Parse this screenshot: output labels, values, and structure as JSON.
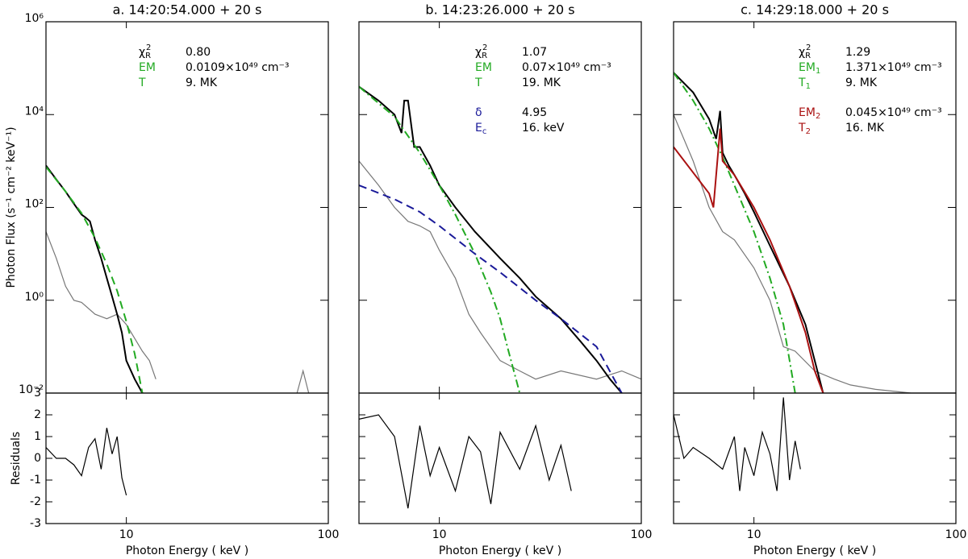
{
  "chart_data": [
    {
      "type": "line",
      "title": "a. 14:20:54.000 + 20 s",
      "xlabel": "Photon Energy ( keV )",
      "ylabel": "Photon Flux (s⁻¹ cm⁻² keV⁻¹)",
      "xlog": true,
      "ylog": true,
      "xlim": [
        4,
        100
      ],
      "xticks": [
        10,
        100
      ],
      "ylim": [
        0.01,
        1000000
      ],
      "yticks": [
        {
          "value": 0.01,
          "label": "10⁻²"
        },
        {
          "value": 1,
          "label": "10⁰"
        },
        {
          "value": 100,
          "label": "10²"
        },
        {
          "value": 10000,
          "label": "10⁴"
        },
        {
          "value": 1000000,
          "label": "10⁶"
        }
      ],
      "series": [
        {
          "color": "#777777",
          "style": "solid",
          "width": 1.2,
          "x": [
            4,
            4.5,
            5,
            5.5,
            6,
            7,
            8,
            9,
            10,
            11,
            12,
            13,
            14,
            60,
            70,
            75,
            80
          ],
          "values": [
            30,
            8,
            2,
            1,
            0.9,
            0.5,
            0.4,
            0.5,
            0.3,
            0.15,
            0.08,
            0.05,
            0.02,
            null,
            0.01,
            0.03,
            0.01
          ]
        },
        {
          "color": "#000000",
          "style": "solid",
          "width": 2,
          "x": [
            4,
            4.5,
            5,
            5.5,
            6,
            6.3,
            6.6,
            7,
            7.5,
            8,
            8.5,
            9,
            9.5,
            10,
            11,
            12
          ],
          "values": [
            800,
            400,
            220,
            120,
            70,
            60,
            50,
            20,
            8,
            3,
            1.2,
            0.5,
            0.2,
            0.05,
            0.02,
            0.01
          ]
        },
        {
          "color": "#22aa22",
          "style": "dashed",
          "width": 2,
          "x": [
            4,
            5,
            6,
            7,
            8,
            9,
            10,
            11,
            12
          ],
          "values": [
            750,
            220,
            75,
            22,
            6,
            1.6,
            0.35,
            0.07,
            0.01
          ]
        }
      ],
      "annotations": [
        {
          "label": "χ",
          "sub": "R",
          "sup": "2",
          "text": "0.80",
          "color": "#000000"
        },
        {
          "label": "EM",
          "text": "0.0109×10⁴⁹ cm⁻³",
          "color": "#22aa22"
        },
        {
          "label": "T",
          "text": "9. MK",
          "color": "#22aa22"
        }
      ],
      "residuals": {
        "ylabel": "Residuals",
        "ylim": [
          -3,
          3
        ],
        "yticks": [
          -3,
          -2,
          -1,
          0,
          1,
          2,
          3
        ],
        "x": [
          4,
          4.5,
          5,
          5.5,
          6,
          6.5,
          7,
          7.5,
          8,
          8.5,
          9,
          9.5,
          10
        ],
        "values": [
          0.5,
          0,
          0,
          -0.3,
          -0.8,
          0.5,
          0.9,
          -0.5,
          1.4,
          0.2,
          1,
          -0.9,
          -1.7
        ]
      }
    },
    {
      "type": "line",
      "title": "b. 14:23:26.000 + 20 s",
      "xlabel": "Photon Energy ( keV )",
      "xlog": true,
      "ylog": true,
      "xlim": [
        4,
        100
      ],
      "xticks": [
        10,
        100
      ],
      "ylim": [
        0.01,
        1000000
      ],
      "series": [
        {
          "color": "#777777",
          "style": "solid",
          "width": 1.2,
          "x": [
            4,
            5,
            6,
            7,
            8,
            9,
            10,
            12,
            14,
            16,
            20,
            25,
            30,
            40,
            60,
            80,
            100
          ],
          "values": [
            1000,
            300,
            100,
            50,
            40,
            30,
            12,
            3,
            0.5,
            0.2,
            0.05,
            0.03,
            0.02,
            0.03,
            0.02,
            0.03,
            0.02
          ]
        },
        {
          "color": "#000000",
          "style": "solid",
          "width": 2,
          "x": [
            4,
            5,
            6,
            6.5,
            6.7,
            7,
            7.5,
            8,
            9,
            10,
            12,
            15,
            20,
            25,
            30,
            40,
            50,
            60,
            70,
            80
          ],
          "values": [
            40000,
            20000,
            10000,
            4000,
            20000,
            20000,
            2000,
            2000,
            800,
            300,
            100,
            30,
            8,
            3,
            1.2,
            0.4,
            0.13,
            0.05,
            0.02,
            0.01
          ]
        },
        {
          "color": "#22aa22",
          "style": "dashdot",
          "width": 2,
          "x": [
            4,
            6,
            8,
            10,
            12,
            15,
            18,
            20,
            22,
            25
          ],
          "values": [
            40000,
            9000,
            1500,
            300,
            70,
            10,
            1.5,
            0.4,
            0.08,
            0.01
          ]
        },
        {
          "color": "#1a1a99",
          "style": "dashed",
          "width": 2,
          "x": [
            4,
            6,
            8,
            10,
            15,
            20,
            30,
            40,
            60,
            80
          ],
          "values": [
            300,
            150,
            80,
            40,
            10,
            4,
            1,
            0.4,
            0.1,
            0.01
          ]
        }
      ],
      "annotations": [
        {
          "label": "χ",
          "sub": "R",
          "sup": "2",
          "text": "1.07",
          "color": "#000000"
        },
        {
          "label": "EM",
          "text": "0.07×10⁴⁹ cm⁻³",
          "color": "#22aa22"
        },
        {
          "label": "T",
          "text": "19. MK",
          "color": "#22aa22"
        },
        {
          "label": "δ",
          "text": "4.95",
          "color": "#1a1a99"
        },
        {
          "label": "E",
          "sub": "c",
          "text": "16. keV",
          "color": "#1a1a99"
        }
      ],
      "residuals": {
        "ylim": [
          -3,
          3
        ],
        "x": [
          4,
          5,
          6,
          7,
          8,
          9,
          10,
          12,
          14,
          16,
          18,
          20,
          25,
          30,
          35,
          40,
          45
        ],
        "values": [
          1.8,
          2,
          1,
          -2.3,
          1.5,
          -0.8,
          0.5,
          -1.5,
          1,
          0.3,
          -2.1,
          1.2,
          -0.5,
          1.5,
          -1,
          0.6,
          -1.5
        ]
      }
    },
    {
      "type": "line",
      "title": "c. 14:29:18.000 + 20 s",
      "xlabel": "Photon Energy ( keV )",
      "xlog": true,
      "ylog": true,
      "xlim": [
        4,
        100
      ],
      "xticks": [
        10,
        100
      ],
      "ylim": [
        0.01,
        1000000
      ],
      "series": [
        {
          "color": "#777777",
          "style": "solid",
          "width": 1.2,
          "x": [
            4,
            5,
            6,
            7,
            8,
            10,
            12,
            14,
            16,
            20,
            25,
            30,
            40,
            60,
            80,
            100
          ],
          "values": [
            10000,
            1000,
            100,
            30,
            20,
            5,
            1,
            0.1,
            0.08,
            0.03,
            0.02,
            0.015,
            0.012,
            0.01,
            0.01,
            0.01
          ]
        },
        {
          "color": "#000000",
          "style": "solid",
          "width": 2,
          "x": [
            4,
            5,
            6,
            6.5,
            6.8,
            7,
            7.5,
            8,
            9,
            10,
            12,
            15,
            18,
            20,
            22
          ],
          "values": [
            80000,
            30000,
            8000,
            3000,
            12000,
            1500,
            800,
            500,
            200,
            80,
            15,
            2,
            0.3,
            0.05,
            0.01
          ]
        },
        {
          "color": "#22aa22",
          "style": "dashdot",
          "width": 2,
          "x": [
            4,
            5,
            6,
            7,
            8,
            10,
            12,
            14,
            16
          ],
          "values": [
            80000,
            20000,
            5000,
            1200,
            300,
            30,
            3,
            0.3,
            0.01
          ]
        },
        {
          "color": "#aa1111",
          "style": "solid",
          "width": 2,
          "x": [
            4,
            6,
            6.3,
            6.8,
            7,
            8,
            10,
            12,
            15,
            18,
            20,
            22
          ],
          "values": [
            2000,
            200,
            100,
            5000,
            1000,
            500,
            100,
            20,
            2,
            0.2,
            0.03,
            0.01
          ]
        }
      ],
      "annotations": [
        {
          "label": "χ",
          "sub": "R",
          "sup": "2",
          "text": "1.29",
          "color": "#000000"
        },
        {
          "label": "EM",
          "sub": "1",
          "text": "1.371×10⁴⁹ cm⁻³",
          "color": "#22aa22"
        },
        {
          "label": "T",
          "sub": "1",
          "text": "9. MK",
          "color": "#22aa22"
        },
        {
          "label": "EM",
          "sub": "2",
          "text": "0.045×10⁴⁹ cm⁻³",
          "color": "#aa1111"
        },
        {
          "label": "T",
          "sub": "2",
          "text": "16. MK",
          "color": "#aa1111"
        }
      ],
      "residuals": {
        "ylim": [
          -3,
          3
        ],
        "x": [
          4,
          4.5,
          5,
          6,
          7,
          8,
          8.5,
          9,
          10,
          11,
          12,
          13,
          14,
          15,
          16,
          17
        ],
        "values": [
          2,
          0,
          0.5,
          0,
          -0.5,
          1,
          -1.5,
          0.5,
          -0.8,
          1.2,
          0.2,
          -1.5,
          2.8,
          -1,
          0.8,
          -0.5
        ]
      }
    }
  ]
}
